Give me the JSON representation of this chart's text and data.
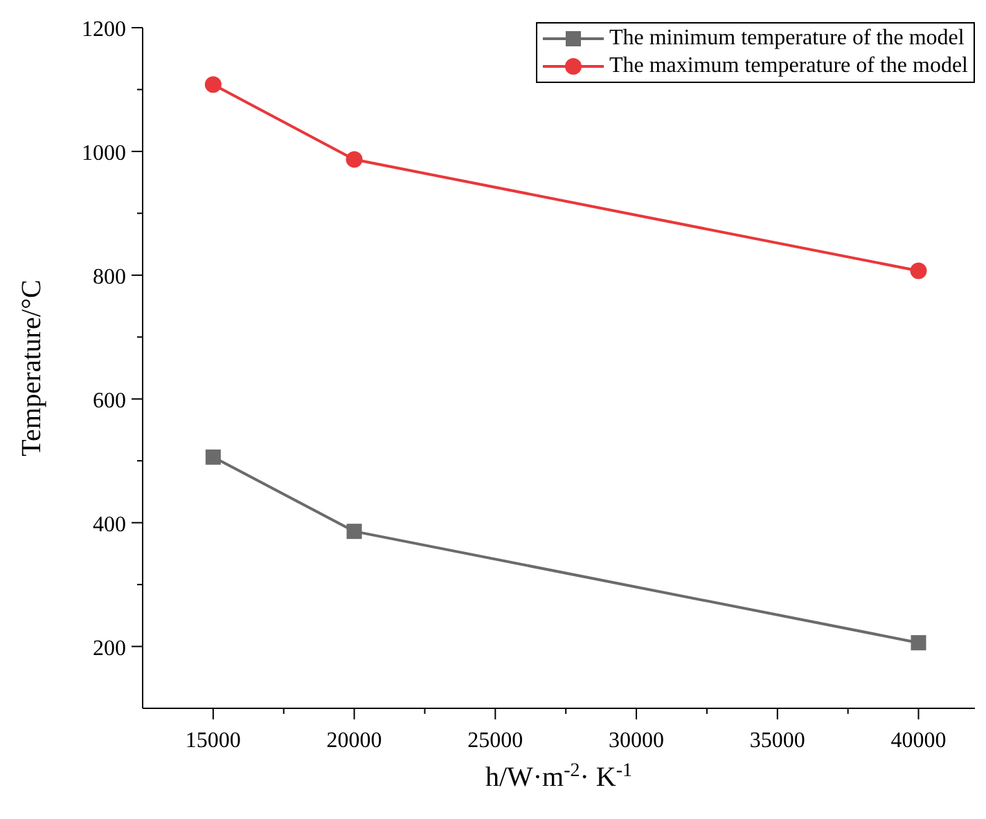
{
  "chart_data": {
    "type": "line",
    "xlabel": "h/W·m$^{-2}$· K$^{-1}$",
    "ylabel": "Temperature/°C",
    "x": [
      15000,
      20000,
      40000
    ],
    "series": [
      {
        "name": "The minimum temperature of the model",
        "color": "#6b6b6b",
        "values": [
          506,
          386,
          206
        ],
        "marker": "square"
      },
      {
        "name": "The maximum temperature of the model",
        "color": "#e8383b",
        "values": [
          1108,
          987,
          807
        ],
        "marker": "circle"
      }
    ],
    "xlim": [
      12500,
      42000
    ],
    "xticks": [
      15000,
      {
        "value": 17500,
        "label": null
      },
      20000,
      {
        "value": 22500,
        "label": null
      },
      25000,
      {
        "value": 27500,
        "label": null
      },
      30000,
      {
        "value": 32500,
        "label": null
      },
      35000,
      {
        "value": 37500,
        "label": null
      },
      40000
    ],
    "ylim": [
      100,
      1200
    ],
    "yticks": [
      200,
      {
        "value": 300,
        "label": null
      },
      400,
      {
        "value": 500,
        "label": null
      },
      600,
      {
        "value": 700,
        "label": null
      },
      800,
      {
        "value": 900,
        "label": null
      },
      1000,
      {
        "value": 1100,
        "label": null
      },
      1200
    ],
    "grid": false,
    "legend": "top right",
    "line_style": "solid"
  }
}
